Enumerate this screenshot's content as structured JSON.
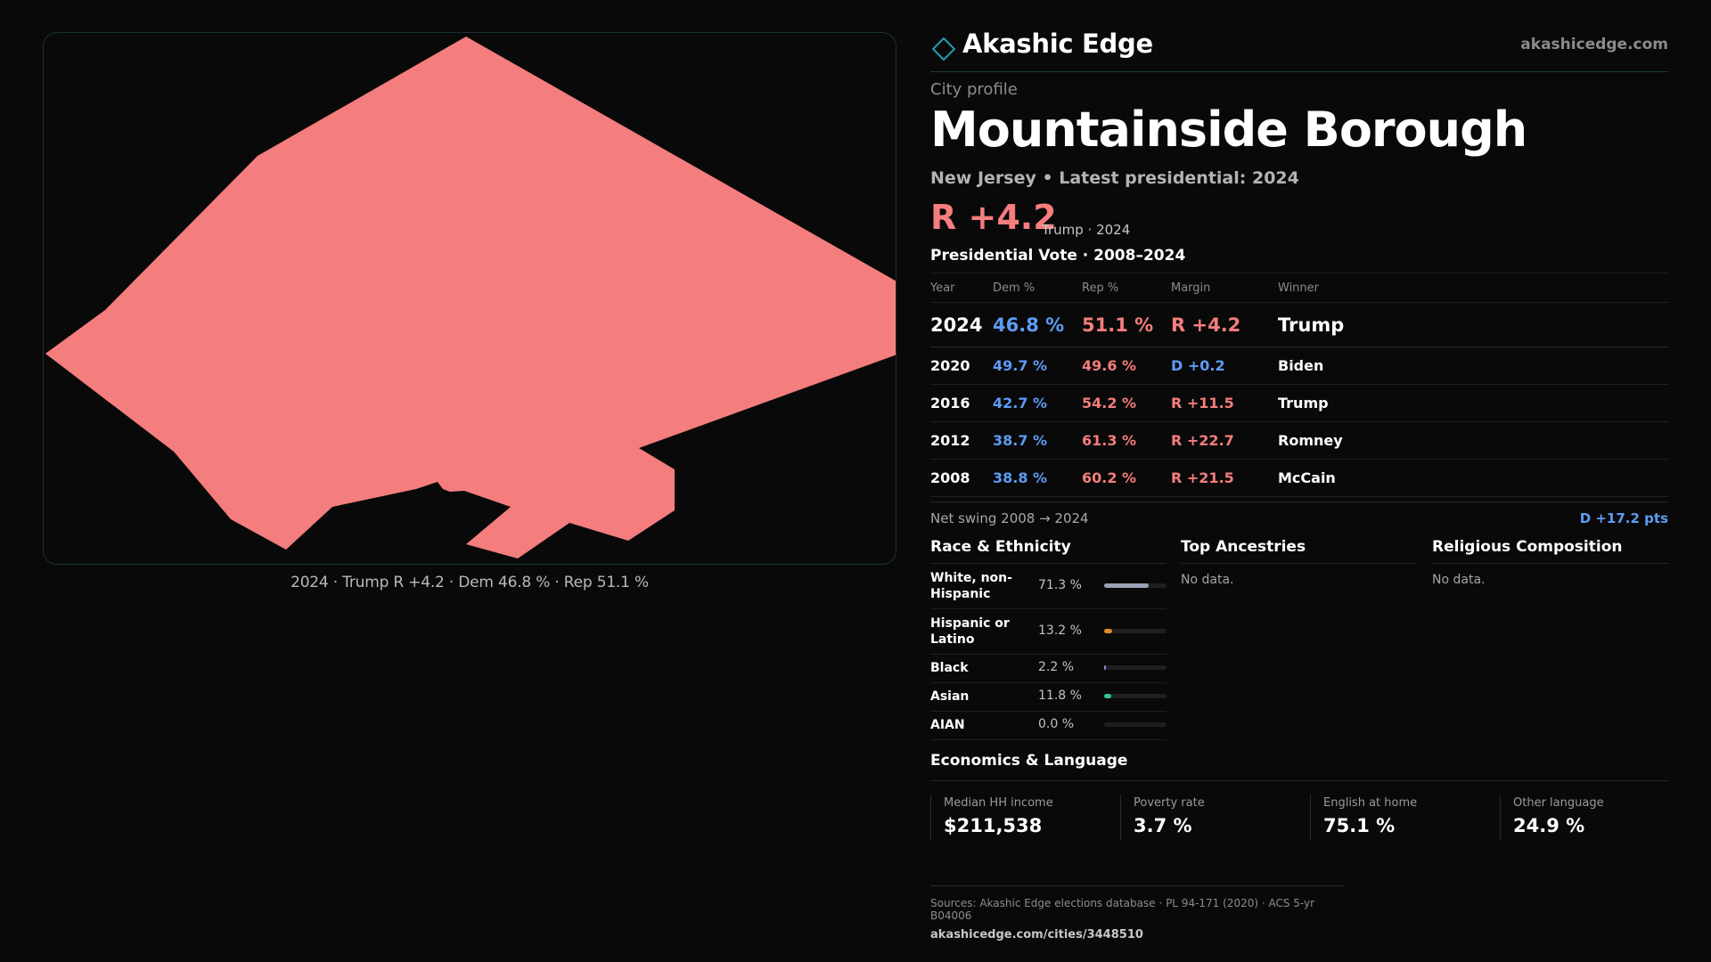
{
  "brand": {
    "name": "Akashic Edge",
    "url": "akashicedge.com"
  },
  "map": {
    "caption": "2024 · Trump R +4.2 · Dem 46.8 % · Rep 51.1 %",
    "fill_color": "#f47d7d",
    "border_color": "#173238"
  },
  "profile": {
    "kicker": "City profile",
    "title": "Mountainside Borough",
    "subtitle": "New Jersey • Latest presidential: 2024",
    "headline_margin": "R +4.2",
    "headline_note": "Trump · 2024"
  },
  "vote": {
    "title": "Presidential Vote · 2008–2024",
    "headers": {
      "year": "Year",
      "dem": "Dem %",
      "rep": "Rep %",
      "margin": "Margin",
      "winner": "Winner"
    },
    "rows": [
      {
        "year": "2024",
        "dem": "46.8 %",
        "rep": "51.1 %",
        "margin": "R +4.2",
        "winner": "Trump"
      },
      {
        "year": "2020",
        "dem": "49.7 %",
        "rep": "49.6 %",
        "margin": "D +0.2",
        "winner": "Biden"
      },
      {
        "year": "2016",
        "dem": "42.7 %",
        "rep": "54.2 %",
        "margin": "R +11.5",
        "winner": "Trump"
      },
      {
        "year": "2012",
        "dem": "38.7 %",
        "rep": "61.3 %",
        "margin": "R +22.7",
        "winner": "Romney"
      },
      {
        "year": "2008",
        "dem": "38.8 %",
        "rep": "60.2 %",
        "margin": "R +21.5",
        "winner": "McCain"
      }
    ],
    "swing_label": "Net swing 2008 → 2024",
    "swing_value": "D +17.2 pts"
  },
  "race": {
    "title": "Race & Ethnicity",
    "rows": [
      {
        "label": "White, non-Hispanic",
        "pct": "71.3 %",
        "value": 71.3,
        "color": "#9aa3b5"
      },
      {
        "label": "Hispanic or Latino",
        "pct": "13.2 %",
        "value": 13.2,
        "color": "#e08a2e"
      },
      {
        "label": "Black",
        "pct": "2.2 %",
        "value": 2.2,
        "color": "#9a7fe0"
      },
      {
        "label": "Asian",
        "pct": "11.8 %",
        "value": 11.8,
        "color": "#2ec79a"
      },
      {
        "label": "AIAN",
        "pct": "0.0 %",
        "value": 0.0,
        "color": "#c05050"
      }
    ]
  },
  "ancestry": {
    "title": "Top Ancestries",
    "empty": "No data."
  },
  "religion": {
    "title": "Religious Composition",
    "empty": "No data."
  },
  "econ": {
    "title": "Economics & Language",
    "cells": [
      {
        "label": "Median HH income",
        "value": "$211,538"
      },
      {
        "label": "Poverty rate",
        "value": "3.7 %"
      },
      {
        "label": "English at home",
        "value": "75.1 %"
      },
      {
        "label": "Other language",
        "value": "24.9 %"
      }
    ]
  },
  "footer": {
    "sources": "Sources: Akashic Edge elections database · PL 94-171 (2020) · ACS 5-yr B04006",
    "url": "akashicedge.com/cities/3448510"
  }
}
